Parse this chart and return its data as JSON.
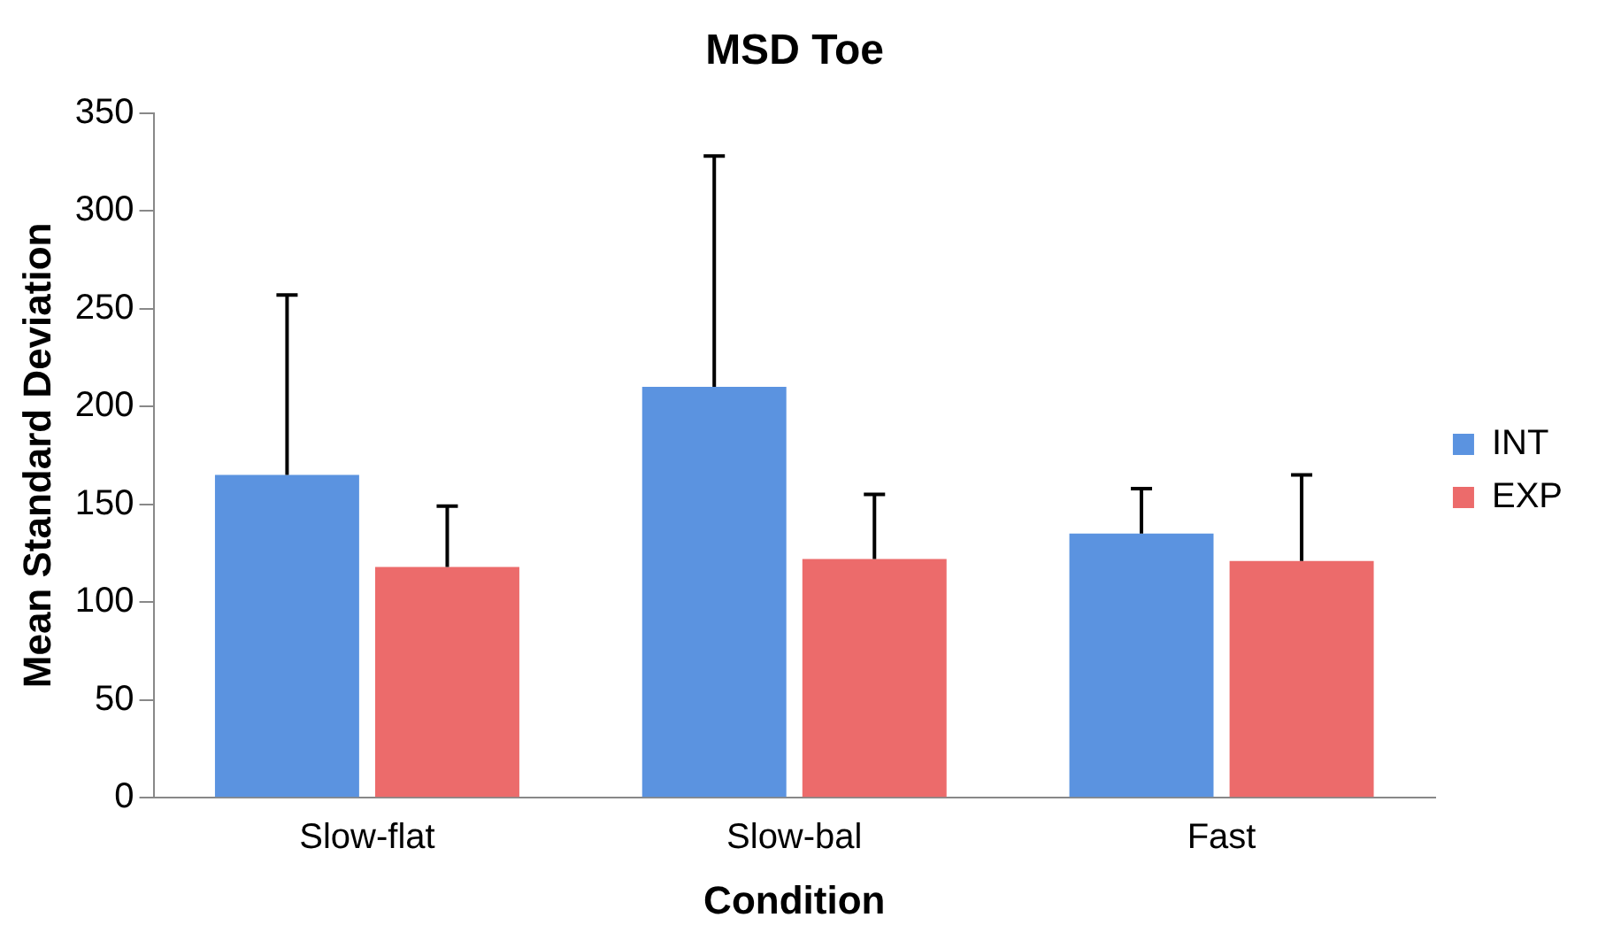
{
  "chart_data": {
    "type": "bar",
    "title": "MSD Toe",
    "xlabel": "Condition",
    "ylabel": "Mean Standard Deviation",
    "categories": [
      "Slow-flat",
      "Slow-bal",
      "Fast"
    ],
    "series": [
      {
        "name": "INT",
        "color": "#5b93e0",
        "values": [
          165,
          210,
          135
        ],
        "errors": [
          [
            165,
            257
          ],
          [
            210,
            328
          ],
          [
            135,
            158
          ]
        ]
      },
      {
        "name": "EXP",
        "color": "#ec6b6b",
        "values": [
          118,
          122,
          121
        ],
        "errors": [
          [
            118,
            149
          ],
          [
            122,
            155
          ],
          [
            121,
            165
          ]
        ]
      }
    ],
    "ylim": [
      0,
      350
    ],
    "yticks": [
      0,
      50,
      100,
      150,
      200,
      250,
      300,
      350
    ],
    "grid": false,
    "legend": "right"
  }
}
